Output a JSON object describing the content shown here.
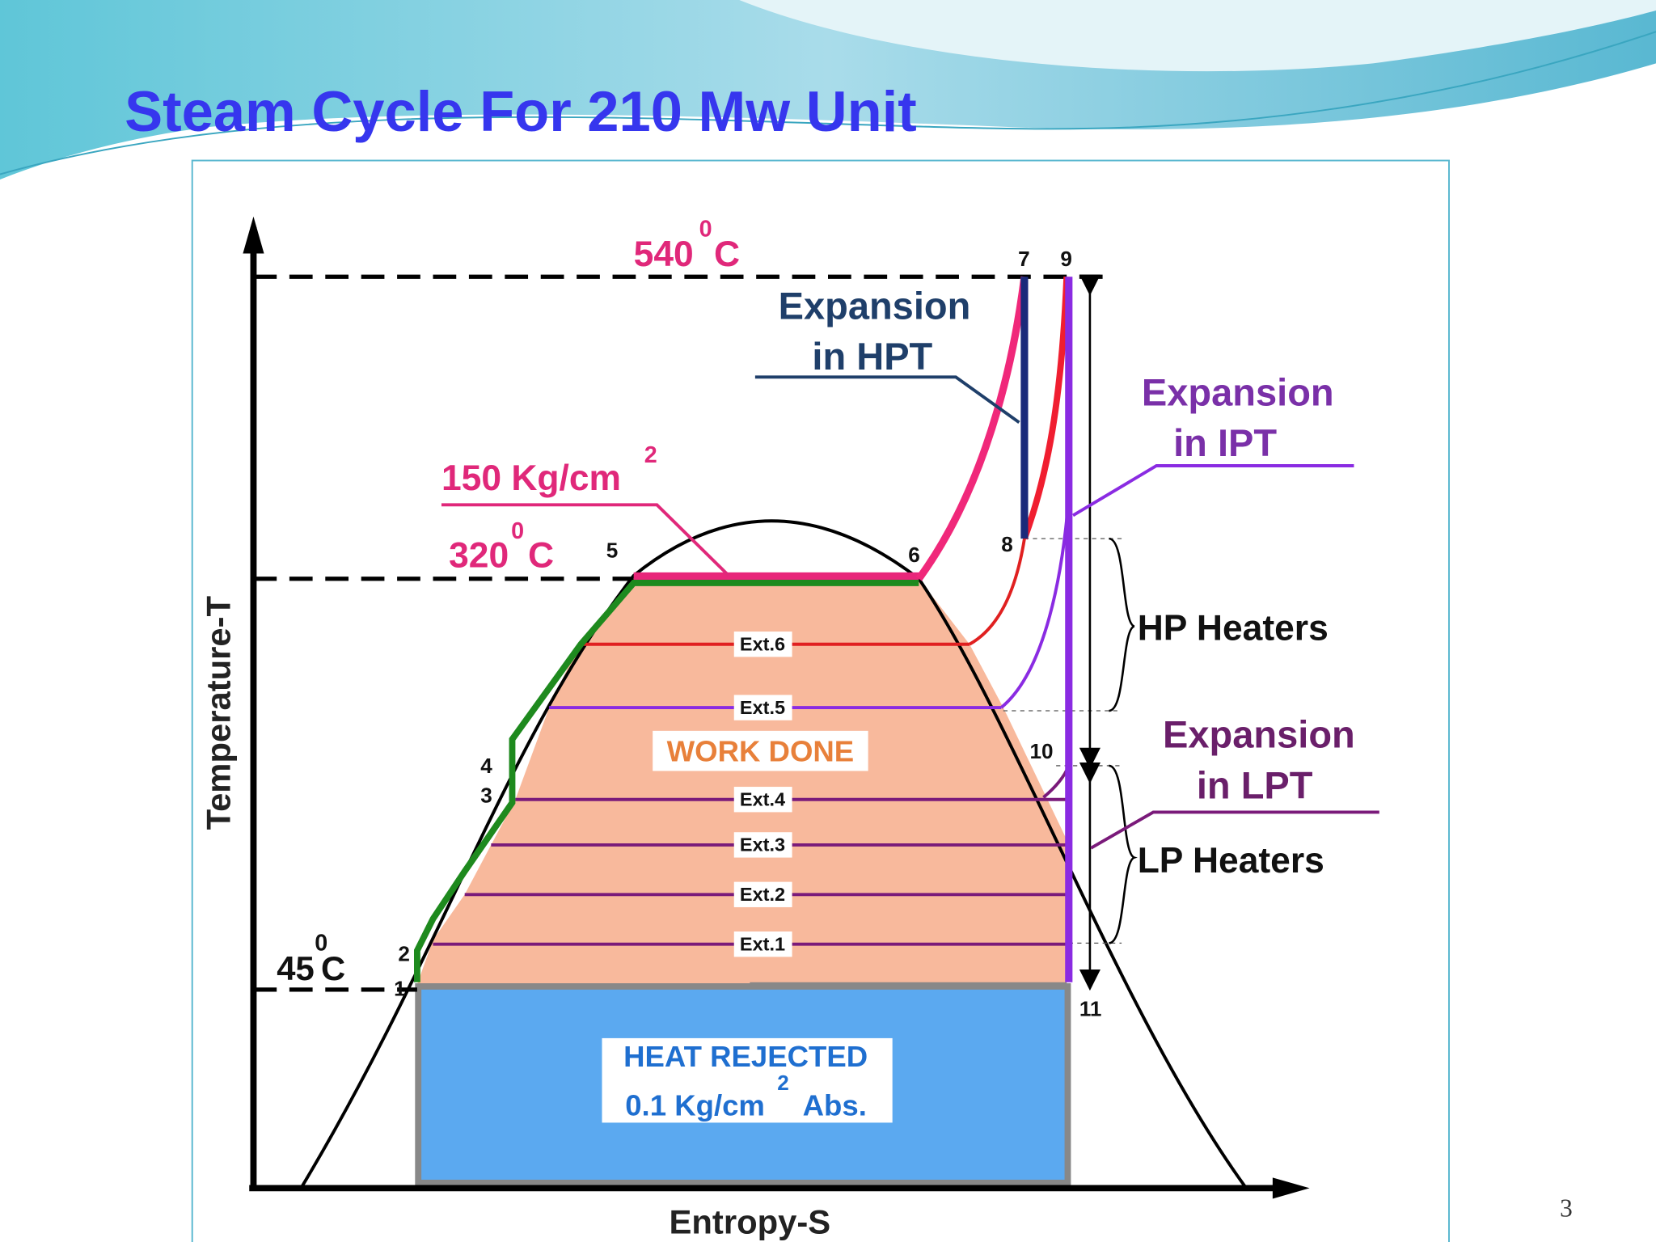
{
  "title": "Steam Cycle For 210 Mw Unit",
  "slide_number": "3",
  "diagram": {
    "y_axis_label": "Temperature-T",
    "x_axis_label": "Entropy-S",
    "temperatures": [
      {
        "value": "540",
        "sup": "0",
        "unit": "C"
      },
      {
        "value": "320",
        "sup": "0",
        "unit": "C"
      },
      {
        "value": "45",
        "sup": "0",
        "unit": "C"
      }
    ],
    "pressure": {
      "value": "150 Kg/cm",
      "sup": "2"
    },
    "points": [
      "1",
      "2",
      "3",
      "4",
      "5",
      "6",
      "7",
      "8",
      "9",
      "10",
      "11"
    ],
    "expansions": [
      {
        "lines": [
          "Expansion",
          "in HPT"
        ]
      },
      {
        "lines": [
          "Expansion",
          "in IPT"
        ]
      },
      {
        "lines": [
          "Expansion",
          "in LPT"
        ]
      }
    ],
    "heaters": [
      "HP Heaters",
      "LP Heaters"
    ],
    "work_done": "WORK DONE",
    "extractions": [
      "Ext.1",
      "Ext.2",
      "Ext.3",
      "Ext.4",
      "Ext.5",
      "Ext.6"
    ],
    "heat_rejected": {
      "title": "HEAT REJECTED",
      "pressure": "0.1 Kg/cm",
      "sup": "2",
      "unit": "Abs."
    }
  }
}
